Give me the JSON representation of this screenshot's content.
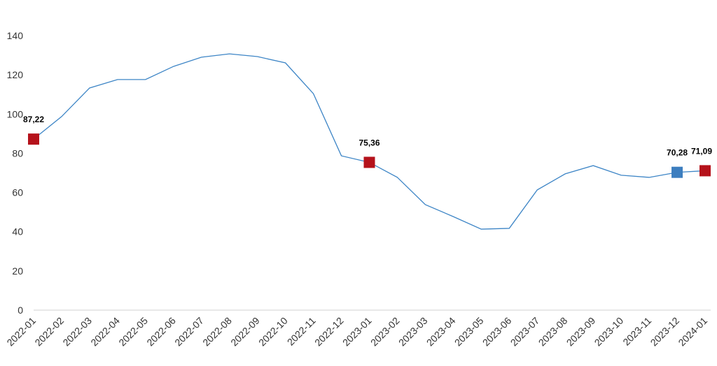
{
  "chart_data": {
    "type": "line",
    "categories": [
      "2022-01",
      "2022-02",
      "2022-03",
      "2022-04",
      "2022-05",
      "2022-06",
      "2022-07",
      "2022-08",
      "2022-09",
      "2022-10",
      "2022-11",
      "2022-12",
      "2023-01",
      "2023-02",
      "2023-03",
      "2023-04",
      "2023-05",
      "2023-06",
      "2023-07",
      "2023-08",
      "2023-09",
      "2023-10",
      "2023-11",
      "2023-12",
      "2024-01"
    ],
    "series": [
      {
        "color": "#3d85c6",
        "values": [
          87.22,
          98.7,
          113.3,
          117.6,
          117.6,
          124.3,
          129,
          130.7,
          129.3,
          126.1,
          110.4,
          78.7,
          75.36,
          67.7,
          53.8,
          47.7,
          41.3,
          41.7,
          61.3,
          69.5,
          73.7,
          68.8,
          67.7,
          70.28,
          71.09
        ],
        "value_labels": [
          "87,22",
          null,
          null,
          null,
          null,
          null,
          null,
          null,
          null,
          null,
          null,
          null,
          "75,36",
          null,
          null,
          null,
          null,
          null,
          null,
          null,
          null,
          null,
          null,
          "70,28",
          "71,09"
        ],
        "marker_colors": [
          "#b5121b",
          null,
          null,
          null,
          null,
          null,
          null,
          null,
          null,
          null,
          null,
          null,
          "#b5121b",
          null,
          null,
          null,
          null,
          null,
          null,
          null,
          null,
          null,
          null,
          "#3d7ebf",
          "#b5121b"
        ]
      }
    ],
    "ylim": [
      0,
      140
    ],
    "yticks": [
      0,
      20,
      40,
      60,
      80,
      100,
      120,
      140
    ],
    "grid": false
  }
}
